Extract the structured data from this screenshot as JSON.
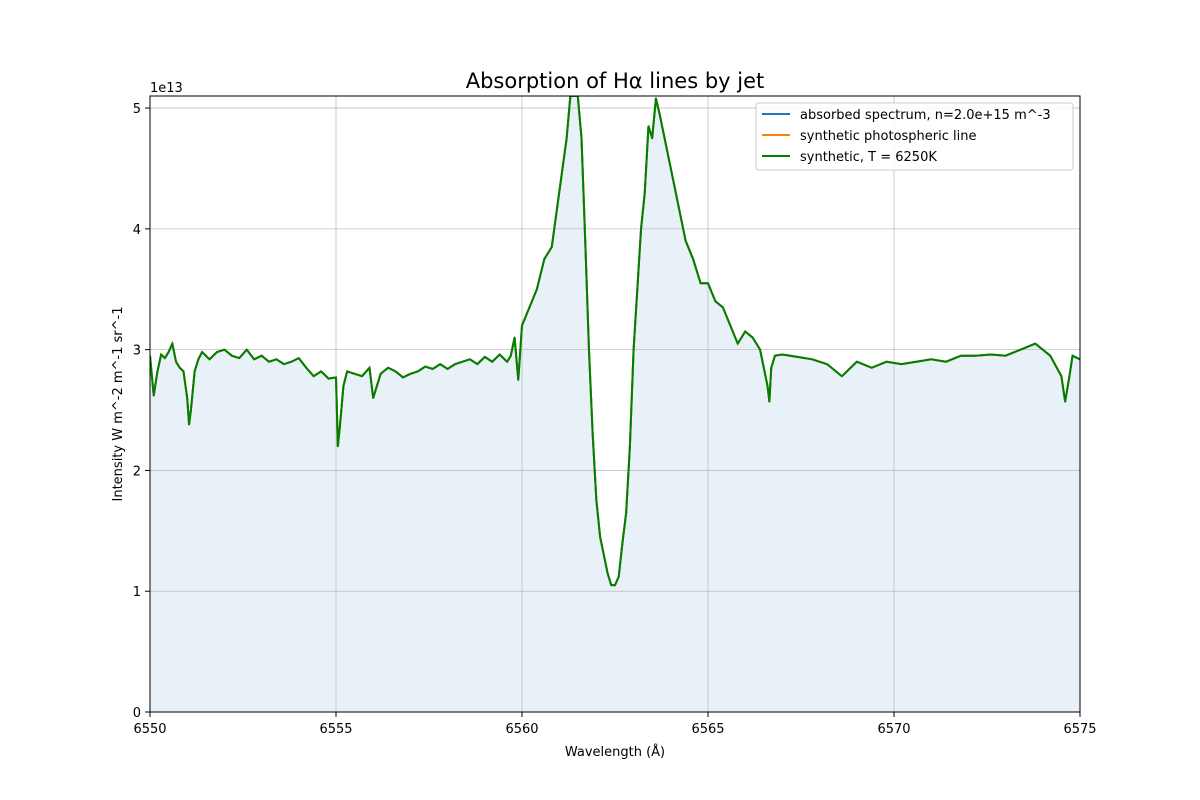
{
  "colors": {
    "absorbed": "#1f77b4",
    "photospheric": "#ff7f0e",
    "synthetic": "#008000",
    "fill": "#e8f0f8",
    "grid": "#b0b0b0"
  },
  "chart_data": {
    "type": "line",
    "title": "Absorption of Hα lines by jet",
    "xlabel": "Wavelength (Å)",
    "ylabel": "Intensity W m^-2 m^-1 sr^-1",
    "y_offset_label": "1e13",
    "xlim": [
      6550,
      6575
    ],
    "ylim": [
      0,
      5.1
    ],
    "y_scale": 10000000000000.0,
    "grid": true,
    "legend_position": "upper right",
    "xticks": [
      6550,
      6555,
      6560,
      6565,
      6570,
      6575
    ],
    "xtick_labels": [
      "6550",
      "6555",
      "6560",
      "6565",
      "6570",
      "6575"
    ],
    "yticks": [
      0,
      1,
      2,
      3,
      4,
      5
    ],
    "ytick_labels": [
      "0",
      "1",
      "2",
      "3",
      "4",
      "5"
    ],
    "legend": [
      "absorbed spectrum, n=2.0e+15 m^-3",
      "synthetic photospheric line",
      "synthetic, T = 6250K"
    ],
    "series": [
      {
        "name": "synthetic, T = 6250K",
        "x": [
          6550.0,
          6550.1,
          6550.2,
          6550.3,
          6550.4,
          6550.5,
          6550.6,
          6550.7,
          6550.8,
          6550.9,
          6551.0,
          6551.05,
          6551.1,
          6551.2,
          6551.3,
          6551.4,
          6551.6,
          6551.8,
          6552.0,
          6552.2,
          6552.4,
          6552.6,
          6552.8,
          6553.0,
          6553.2,
          6553.4,
          6553.6,
          6553.8,
          6554.0,
          6554.2,
          6554.4,
          6554.6,
          6554.8,
          6555.0,
          6555.05,
          6555.1,
          6555.2,
          6555.3,
          6555.5,
          6555.7,
          6555.9,
          6556.0,
          6556.2,
          6556.4,
          6556.6,
          6556.8,
          6557.0,
          6557.2,
          6557.4,
          6557.6,
          6557.8,
          6558.0,
          6558.2,
          6558.4,
          6558.6,
          6558.8,
          6559.0,
          6559.2,
          6559.4,
          6559.6,
          6559.7,
          6559.8,
          6559.9,
          6560.0,
          6560.2,
          6560.4,
          6560.6,
          6560.8,
          6561.0,
          6561.2,
          6561.3,
          6561.4,
          6561.5,
          6561.6,
          6561.7,
          6561.8,
          6561.9,
          6562.0,
          6562.1,
          6562.2,
          6562.3,
          6562.4,
          6562.5,
          6562.6,
          6562.7,
          6562.8,
          6562.9,
          6563.0,
          6563.1,
          6563.2,
          6563.3,
          6563.4,
          6563.5,
          6563.6,
          6563.7,
          6563.8,
          6564.0,
          6564.2,
          6564.4,
          6564.6,
          6564.8,
          6565.0,
          6565.2,
          6565.4,
          6565.6,
          6565.8,
          6566.0,
          6566.2,
          6566.4,
          6566.6,
          6566.65,
          6566.7,
          6566.8,
          6567.0,
          6567.4,
          6567.8,
          6568.2,
          6568.6,
          6569.0,
          6569.4,
          6569.8,
          6570.2,
          6570.6,
          6571.0,
          6571.4,
          6571.8,
          6572.2,
          6572.6,
          6573.0,
          6573.4,
          6573.8,
          6574.2,
          6574.5,
          6574.6,
          6574.7,
          6574.8,
          6575.0
        ],
        "y": [
          2.95,
          2.62,
          2.82,
          2.96,
          2.93,
          2.98,
          3.05,
          2.9,
          2.85,
          2.82,
          2.6,
          2.38,
          2.5,
          2.82,
          2.92,
          2.98,
          2.92,
          2.98,
          3.0,
          2.95,
          2.93,
          3.0,
          2.92,
          2.95,
          2.9,
          2.92,
          2.88,
          2.9,
          2.93,
          2.85,
          2.78,
          2.82,
          2.76,
          2.77,
          2.2,
          2.35,
          2.7,
          2.82,
          2.8,
          2.78,
          2.85,
          2.6,
          2.8,
          2.85,
          2.82,
          2.77,
          2.8,
          2.82,
          2.86,
          2.84,
          2.88,
          2.84,
          2.88,
          2.9,
          2.92,
          2.88,
          2.94,
          2.9,
          2.96,
          2.9,
          2.95,
          3.1,
          2.75,
          3.2,
          3.35,
          3.5,
          3.75,
          3.85,
          4.3,
          4.75,
          5.1,
          5.1,
          5.1,
          4.75,
          3.9,
          3.0,
          2.3,
          1.75,
          1.45,
          1.3,
          1.15,
          1.05,
          1.05,
          1.12,
          1.4,
          1.65,
          2.2,
          3.0,
          3.5,
          4.0,
          4.3,
          4.85,
          4.75,
          5.08,
          4.95,
          4.8,
          4.5,
          4.2,
          3.9,
          3.75,
          3.55,
          3.55,
          3.4,
          3.35,
          3.2,
          3.05,
          3.15,
          3.1,
          3.0,
          2.7,
          2.57,
          2.85,
          2.95,
          2.96,
          2.94,
          2.92,
          2.88,
          2.78,
          2.9,
          2.85,
          2.9,
          2.88,
          2.9,
          2.92,
          2.9,
          2.95,
          2.95,
          2.96,
          2.95,
          3.0,
          3.05,
          2.95,
          2.78,
          2.57,
          2.75,
          2.95,
          2.92
        ]
      }
    ]
  }
}
